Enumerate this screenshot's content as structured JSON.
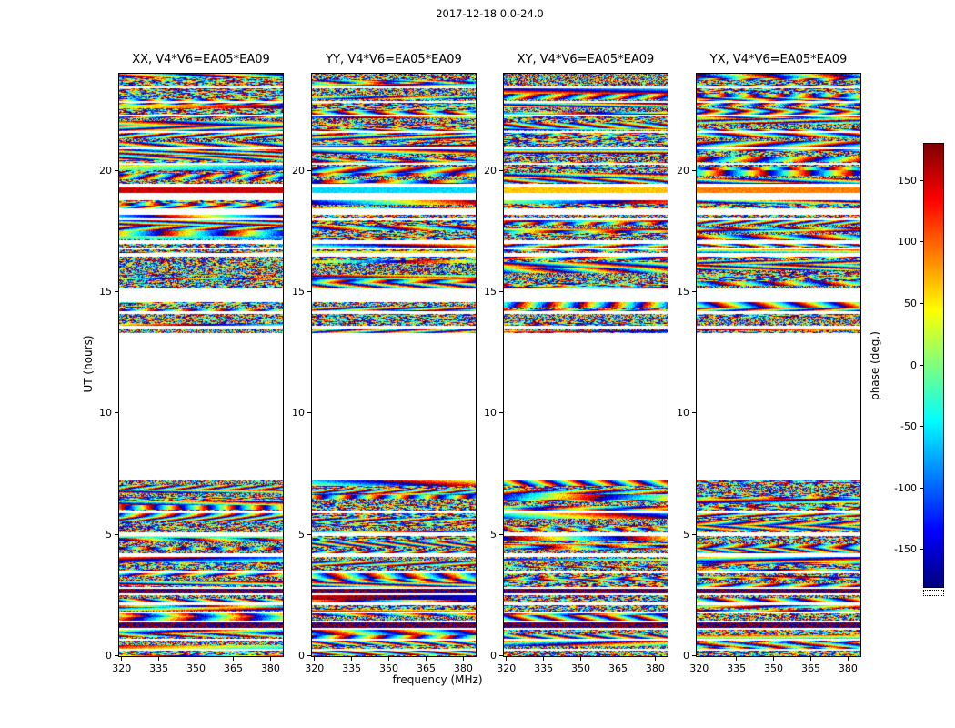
{
  "chart_data": {
    "type": "heatmap",
    "title": "2017-12-18 0.0-24.0",
    "xlabel": "frequency (MHz)",
    "ylabel": "UT (hours)",
    "x_range": [
      319,
      385
    ],
    "y_range": [
      0,
      24
    ],
    "x_ticks": [
      320,
      335,
      350,
      365,
      380
    ],
    "y_ticks": [
      0,
      5,
      10,
      15,
      20
    ],
    "grid": false,
    "panels": [
      {
        "pol": "XX",
        "title": "XX, V4*V6=EA05*EA09"
      },
      {
        "pol": "YY",
        "title": "YY, V4*V6=EA05*EA09"
      },
      {
        "pol": "XY",
        "title": "XY, V4*V6=EA05*EA09"
      },
      {
        "pol": "YX",
        "title": "YX, V4*V6=EA05*EA09"
      }
    ],
    "colorbar": {
      "label": "phase (deg.)",
      "ticks": [
        -150,
        -100,
        -50,
        0,
        50,
        100,
        150
      ],
      "range": [
        -180,
        180
      ],
      "colormap": "jet",
      "orientation": "vertical"
    },
    "values_note": "per-sample visibility phase appears as unresolvable pseudo-random striped noise; white rows are flagged/missing times",
    "data_bands": [
      {
        "ut": [
          0.0,
          0.22
        ]
      },
      {
        "ut": [
          0.3,
          0.62
        ]
      },
      {
        "ut": [
          0.7,
          1.08
        ]
      },
      {
        "ut": [
          1.16,
          1.38
        ],
        "style": "dark"
      },
      {
        "ut": [
          1.45,
          1.75
        ]
      },
      {
        "ut": [
          1.85,
          2.1
        ]
      },
      {
        "ut": [
          2.2,
          2.5
        ]
      },
      {
        "ut": [
          2.6,
          2.78
        ],
        "style": "dark"
      },
      {
        "ut": [
          2.85,
          3.4
        ]
      },
      {
        "ut": [
          3.5,
          4.1
        ]
      },
      {
        "ut": [
          4.25,
          4.95
        ]
      },
      {
        "ut": [
          5.1,
          5.9
        ]
      },
      {
        "ut": [
          6.0,
          7.25
        ]
      },
      {
        "ut": [
          13.3,
          13.5
        ]
      },
      {
        "ut": [
          13.6,
          14.1
        ]
      },
      {
        "ut": [
          14.2,
          14.6
        ]
      },
      {
        "ut": [
          15.15,
          16.45
        ]
      },
      {
        "ut": [
          16.6,
          16.75
        ]
      },
      {
        "ut": [
          16.85,
          17.0
        ]
      },
      {
        "ut": [
          17.15,
          17.95
        ]
      },
      {
        "ut": [
          18.03,
          18.2
        ]
      },
      {
        "ut": [
          18.45,
          18.8
        ]
      },
      {
        "ut": [
          19.1,
          19.3
        ],
        "style": "solid"
      },
      {
        "ut": [
          19.45,
          20.25
        ]
      },
      {
        "ut": [
          20.32,
          20.9
        ]
      },
      {
        "ut": [
          20.98,
          21.55
        ]
      },
      {
        "ut": [
          21.63,
          22.25
        ]
      },
      {
        "ut": [
          22.33,
          22.8
        ]
      },
      {
        "ut": [
          22.88,
          23.4
        ]
      },
      {
        "ut": [
          23.47,
          24.0
        ]
      }
    ],
    "empty_gap_ut": [
      7.25,
      13.3
    ],
    "colors": {
      "background": "#ffffff",
      "frame": "#000000",
      "text": "#000000"
    }
  }
}
